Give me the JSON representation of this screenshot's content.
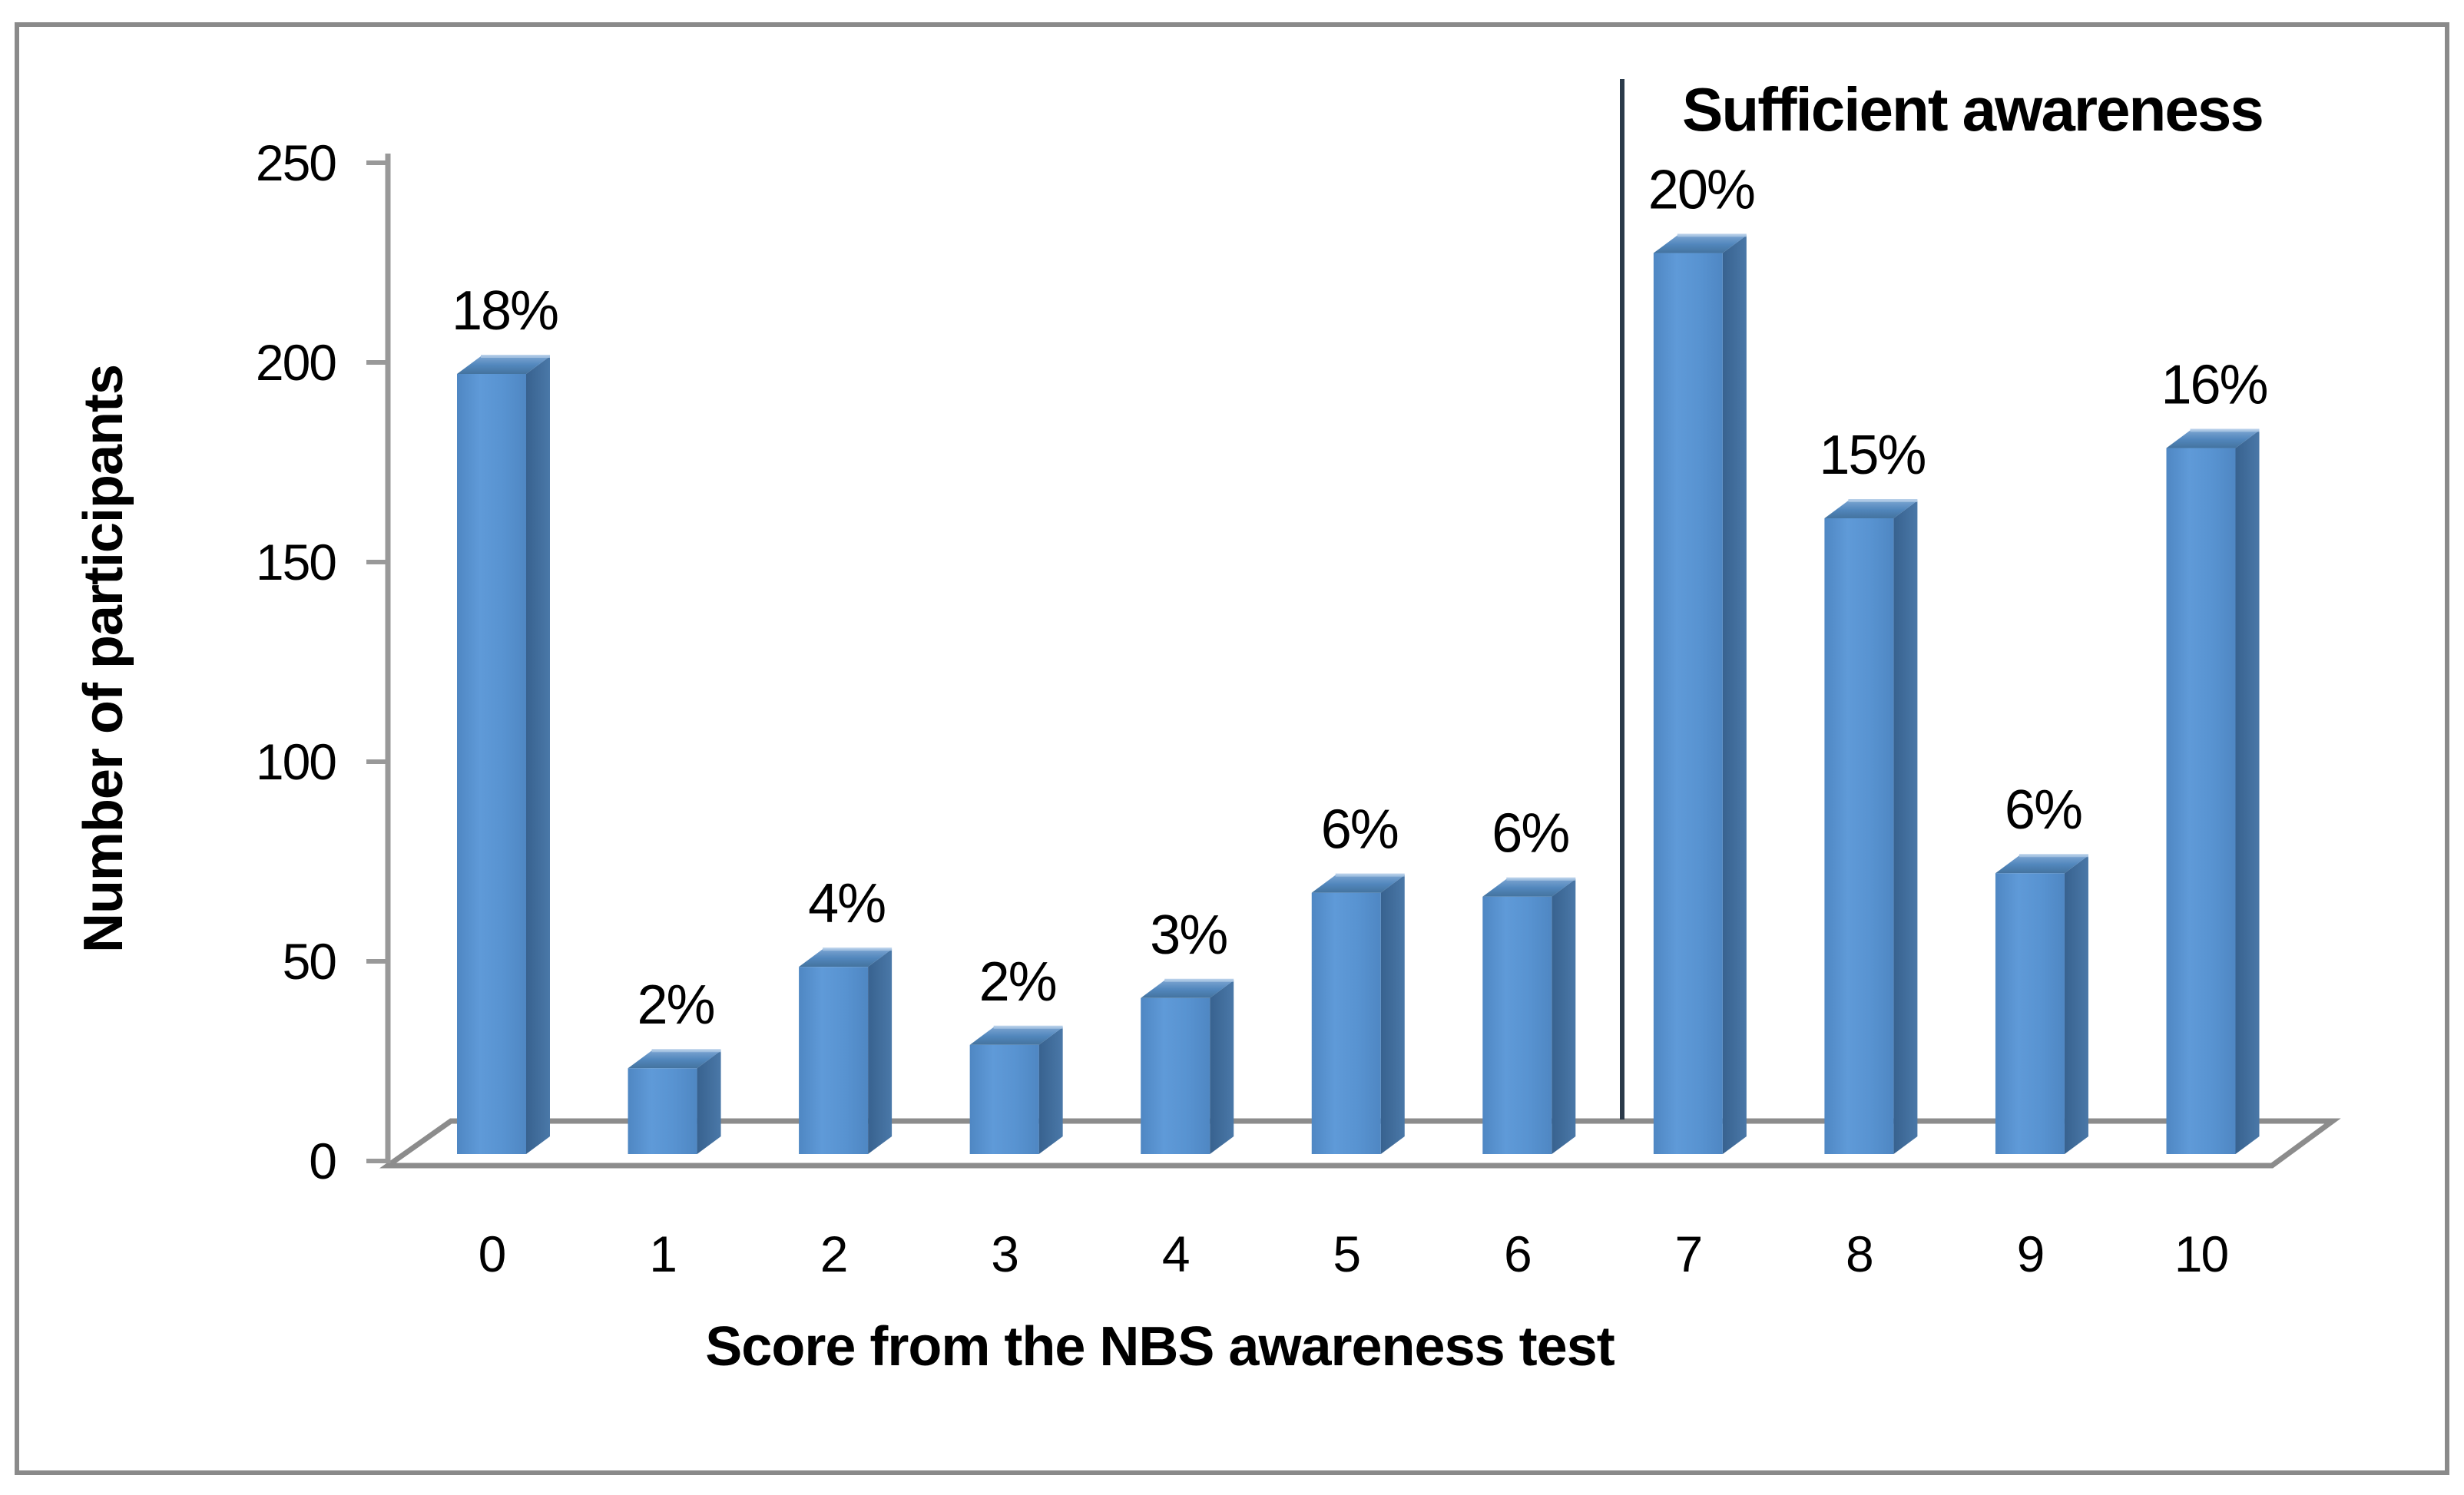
{
  "chart_data": {
    "type": "bar",
    "ylabel": "Number of participants",
    "xlabel": "Score from the NBS awareness test",
    "annotation": "Sufficient awareness",
    "categories": [
      "0",
      "1",
      "2",
      "3",
      "4",
      "5",
      "6",
      "7",
      "8",
      "9",
      "10"
    ],
    "values": [
      200,
      22,
      48,
      28,
      40,
      67,
      66,
      231,
      163,
      72,
      181
    ],
    "bar_value_labels": [
      "18%",
      "2%",
      "4%",
      "2%",
      "3%",
      "6%",
      "6%",
      "20%",
      "15%",
      "6%",
      "16%"
    ],
    "yticks": [
      0,
      50,
      100,
      150,
      200,
      250
    ],
    "ylim": [
      0,
      250
    ],
    "grid": false,
    "legend": "none",
    "divider_after_category": "6",
    "bar_style": "3d-column"
  },
  "colors": {
    "background": "#ffffff",
    "border": "#8a8a8a",
    "axis": "#999999",
    "floor": "#8c8c8c",
    "divider": "#2b3a4a",
    "text": "#000000",
    "bar_front": [
      "#4f87c3",
      "#5f9ad8",
      "#5893d1",
      "#4f87c3"
    ],
    "bar_side": [
      "#38628f",
      "#4a78a8"
    ],
    "bar_top": [
      "#7ba4d1",
      "#5287bd",
      "#44739e"
    ],
    "bar_top_highlight": "#a9c6e4"
  }
}
